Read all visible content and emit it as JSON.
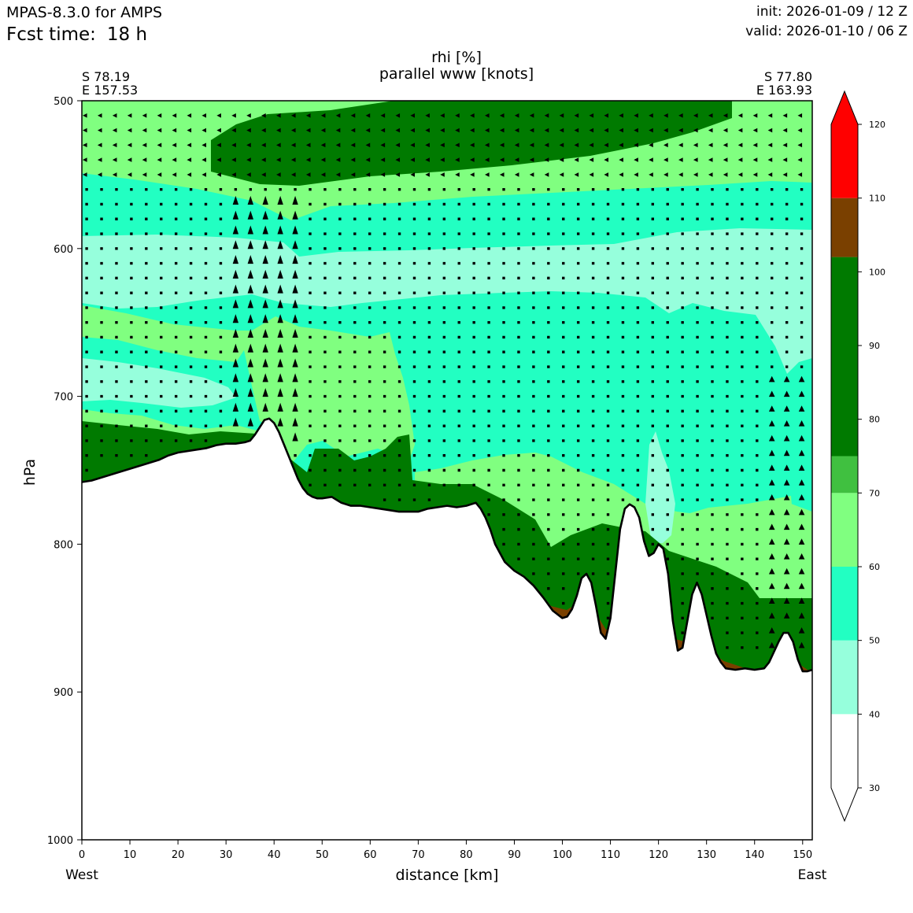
{
  "header": {
    "model": "MPAS-8.3.0 for AMPS",
    "fcst_label": "Fcst time:",
    "fcst_value": "18 h",
    "init": "init: 2026-01-09 / 12 Z",
    "valid": "valid: 2026-01-10 / 06 Z"
  },
  "endpoints": {
    "left_lat": "S 78.19",
    "left_lon": "E 157.53",
    "right_lat": "S 77.80",
    "right_lon": "E 163.93",
    "left_dir": "West",
    "right_dir": "East"
  },
  "chart_data": {
    "type": "cross-section contour",
    "title": "rhi [%]",
    "subtitle": "parallel www [knots]",
    "xlabel": "distance [km]",
    "ylabel": "hPa",
    "xlim": [
      0,
      152
    ],
    "ylim": [
      1000,
      500
    ],
    "xticks": [
      0,
      10,
      20,
      30,
      40,
      50,
      60,
      70,
      80,
      90,
      100,
      110,
      120,
      130,
      140,
      150
    ],
    "yticks": [
      500,
      600,
      700,
      800,
      900,
      1000
    ],
    "colorbar": {
      "ticks": [
        30,
        40,
        50,
        60,
        70,
        80,
        90,
        100,
        110,
        120
      ],
      "levels": [
        {
          "from": 30,
          "to": 40,
          "color": "#ffffff"
        },
        {
          "from": 40,
          "to": 50,
          "color": "#96ffdc"
        },
        {
          "from": 50,
          "to": 60,
          "color": "#22ffc2"
        },
        {
          "from": 60,
          "to": 70,
          "color": "#80ff80"
        },
        {
          "from": 70,
          "to": 75,
          "color": "#40c040"
        },
        {
          "from": 75,
          "to": 102,
          "color": "#007a00"
        },
        {
          "from": 102,
          "to": 110,
          "color": "#7a4000"
        },
        {
          "from": 110,
          "to": 120,
          "color": "#ff0000"
        }
      ],
      "extend": "both"
    },
    "terrain": {
      "x": [
        0,
        2,
        4,
        6,
        8,
        10,
        12,
        14,
        16,
        18,
        20,
        22,
        24,
        26,
        28,
        30,
        32,
        34,
        35,
        36,
        37,
        38,
        39,
        40,
        41,
        42,
        43,
        44,
        45,
        46,
        47,
        48,
        49,
        50,
        52,
        54,
        56,
        58,
        60,
        62,
        64,
        66,
        68,
        70,
        72,
        74,
        76,
        78,
        80,
        82,
        83,
        84,
        85,
        86,
        88,
        90,
        92,
        94,
        96,
        98,
        100,
        101,
        102,
        103,
        104,
        105,
        106,
        107,
        108,
        109,
        110,
        111,
        112,
        113,
        114,
        115,
        116,
        117,
        118,
        119,
        120,
        121,
        122,
        123,
        124,
        125,
        126,
        127,
        128,
        129,
        130,
        131,
        132,
        133,
        134,
        136,
        138,
        140,
        142,
        143,
        144,
        145,
        146,
        147,
        148,
        149,
        150,
        151,
        152
      ],
      "p": [
        758,
        757,
        755,
        753,
        751,
        749,
        747,
        745,
        743,
        740,
        738,
        737,
        736,
        735,
        733,
        732,
        732,
        731,
        730,
        726,
        721,
        716,
        715,
        718,
        724,
        732,
        740,
        748,
        756,
        762,
        766,
        768,
        769,
        769,
        768,
        772,
        774,
        774,
        775,
        776,
        777,
        778,
        778,
        778,
        776,
        775,
        774,
        775,
        774,
        772,
        776,
        782,
        790,
        800,
        812,
        818,
        822,
        828,
        836,
        845,
        850,
        849,
        844,
        835,
        823,
        820,
        826,
        842,
        860,
        864,
        850,
        820,
        790,
        776,
        773,
        775,
        782,
        798,
        808,
        806,
        800,
        803,
        820,
        852,
        872,
        870,
        852,
        834,
        826,
        834,
        848,
        862,
        874,
        880,
        884,
        885,
        884,
        885,
        884,
        880,
        873,
        866,
        860,
        860,
        866,
        878,
        886,
        886,
        885
      ]
    }
  }
}
